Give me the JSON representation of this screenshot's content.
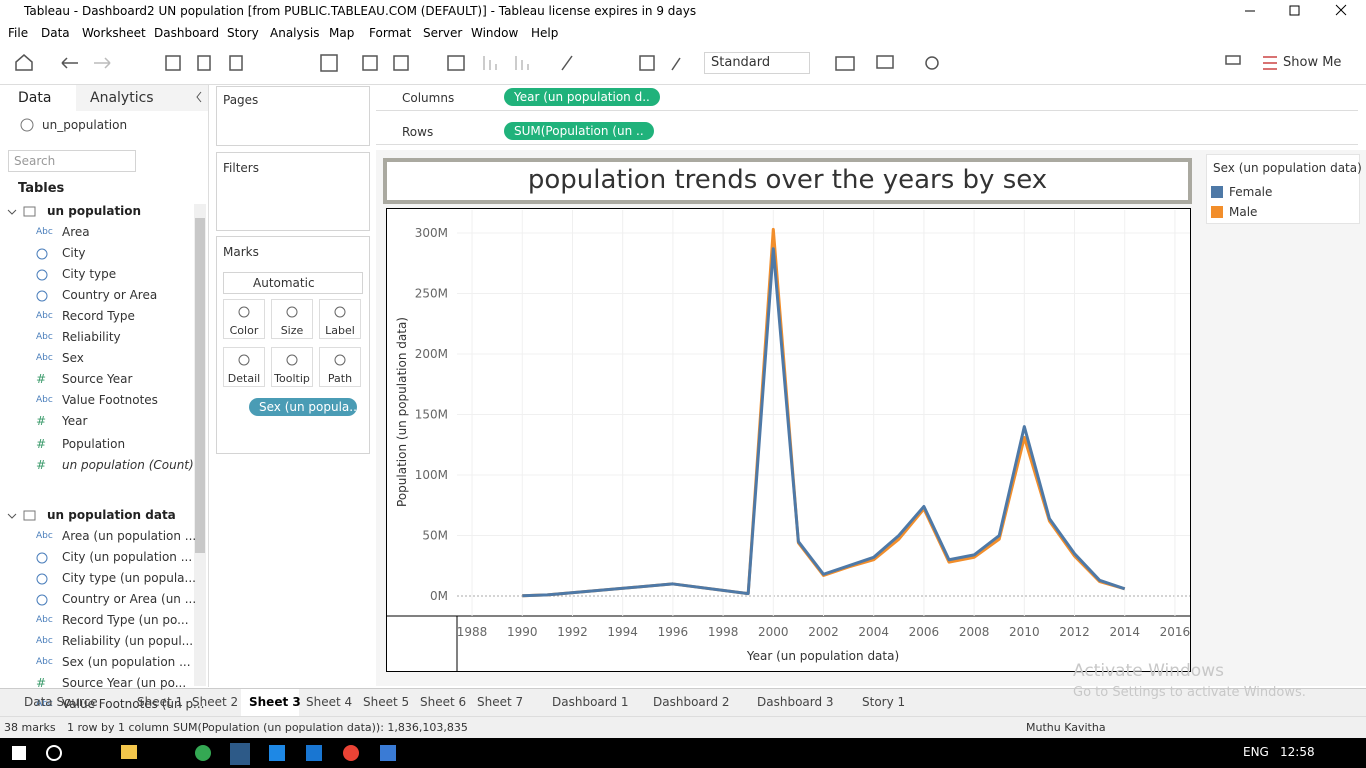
{
  "window": {
    "title": "Tableau - Dashboard2 UN population [from PUBLIC.TABLEAU.COM (DEFAULT)] - Tableau license expires in 9 days"
  },
  "menu": [
    "File",
    "Data",
    "Worksheet",
    "Dashboard",
    "Story",
    "Analysis",
    "Map",
    "Format",
    "Server",
    "Window",
    "Help"
  ],
  "toolbar": {
    "fit": "Standard",
    "show_me": "Show Me"
  },
  "data_pane": {
    "tabs": [
      "Data",
      "Analytics"
    ],
    "source": "un_population",
    "search": "Search",
    "tables_heading": "Tables",
    "tables": [
      {
        "name": "un population",
        "fields": [
          {
            "icon": "Abc",
            "name": "Area"
          },
          {
            "icon": null,
            "name": "City"
          },
          {
            "icon": null,
            "name": "City type"
          },
          {
            "icon": null,
            "name": "Country or Area"
          },
          {
            "icon": "Abc",
            "name": "Record Type"
          },
          {
            "icon": "Abc",
            "name": "Reliability"
          },
          {
            "icon": "Abc",
            "name": "Sex"
          },
          {
            "icon": "#",
            "name": "Source Year"
          },
          {
            "icon": "Abc",
            "name": "Value Footnotes"
          },
          {
            "icon": "#",
            "name": "Year"
          },
          {
            "icon": "#",
            "name": "Population"
          },
          {
            "icon": "#",
            "name": "un population (Count)"
          }
        ]
      },
      {
        "name": "un population data",
        "fields": [
          {
            "icon": "Abc",
            "name": "Area (un population ..."
          },
          {
            "icon": null,
            "name": "City (un population ..."
          },
          {
            "icon": null,
            "name": "City type (un popula..."
          },
          {
            "icon": null,
            "name": "Country or Area (un ..."
          },
          {
            "icon": "Abc",
            "name": "Record Type (un po..."
          },
          {
            "icon": "Abc",
            "name": "Reliability (un popul..."
          },
          {
            "icon": "Abc",
            "name": "Sex (un population ..."
          },
          {
            "icon": "#",
            "name": "Source Year (un po..."
          },
          {
            "icon": "Abc",
            "name": "Value Footnotes (un p..."
          }
        ]
      }
    ]
  },
  "shelves": {
    "pages": "Pages",
    "filters": "Filters",
    "columns": {
      "label": "Columns",
      "pill": "Year (un population d.."
    },
    "rows": {
      "label": "Rows",
      "pill": "SUM(Population (un .."
    }
  },
  "marks": {
    "title": "Marks",
    "type": "Automatic",
    "buttons": [
      "Color",
      "Size",
      "Label",
      "Detail",
      "Tooltip",
      "Path"
    ],
    "pill": "Sex (un popula.."
  },
  "chart_data": {
    "type": "line",
    "title": "population trends over the years by sex",
    "x_label": "Year (un population data)",
    "y_label": "Population (un population data)",
    "legend_title": "Sex (un population data)",
    "x": [
      1990,
      1991,
      1996,
      1999,
      2000,
      2001,
      2002,
      2003,
      2004,
      2005,
      2006,
      2007,
      2008,
      2009,
      2010,
      2011,
      2012,
      2013,
      2014
    ],
    "series": [
      {
        "name": "Female",
        "color": "#4e79a7",
        "values": [
          200000,
          1000000,
          10000000,
          2000000,
          287000000,
          45000000,
          18000000,
          25000000,
          32000000,
          50000000,
          74000000,
          30000000,
          34000000,
          50000000,
          140000000,
          64000000,
          35000000,
          13000000,
          6000000
        ]
      },
      {
        "name": "Male",
        "color": "#f28e2b",
        "values": [
          200000,
          1000000,
          10000000,
          2000000,
          303000000,
          44000000,
          17000000,
          24000000,
          30000000,
          47000000,
          72000000,
          28000000,
          32000000,
          47000000,
          131000000,
          62000000,
          33000000,
          12000000,
          6000000
        ]
      }
    ],
    "xlim": [
      1987.4,
      2016.6
    ],
    "xticks": [
      1988,
      1990,
      1992,
      1994,
      1996,
      1998,
      2000,
      2002,
      2004,
      2006,
      2008,
      2010,
      2012,
      2014,
      2016
    ],
    "ylim": [
      -16500000,
      319000000
    ],
    "yticks": [
      {
        "value": 0,
        "label": "0M"
      },
      {
        "value": 50000000,
        "label": "50M"
      },
      {
        "value": 100000000,
        "label": "100M"
      },
      {
        "value": 150000000,
        "label": "150M"
      },
      {
        "value": 200000000,
        "label": "200M"
      },
      {
        "value": 250000000,
        "label": "250M"
      },
      {
        "value": 300000000,
        "label": "300M"
      }
    ],
    "grid": true
  },
  "sheet_tabs": {
    "tabs": [
      "Data Source",
      "Sheet 1",
      "Sheet 2",
      "Sheet 3",
      "Sheet 4",
      "Sheet 5",
      "Sheet 6",
      "Sheet 7",
      "Dashboard 1",
      "Dashboard 2",
      "Dashboard 3",
      "Story 1"
    ],
    "active": 3
  },
  "status_bar": {
    "marks": "38 marks",
    "layout": "1 row by 1 column",
    "summary": "SUM(Population (un population data)): 1,836,103,835",
    "user": "Muthu Kavitha"
  },
  "watermark": {
    "line1": "Activate Windows",
    "line2": "Go to Settings to activate Windows."
  },
  "taskbar": {
    "language": "ENG",
    "time": "12:58"
  }
}
